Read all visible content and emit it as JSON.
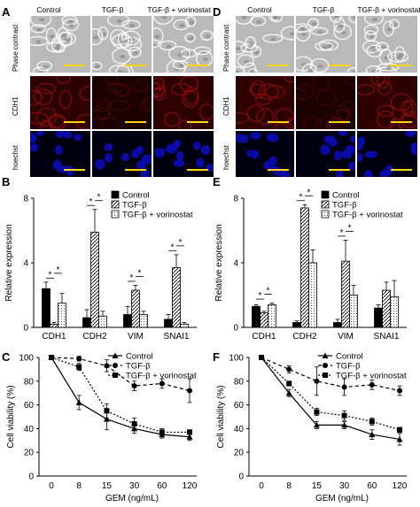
{
  "panels": {
    "A": "A",
    "B": "B",
    "C": "C",
    "D": "D",
    "E": "E",
    "F": "F"
  },
  "micro": {
    "columns": [
      "Control",
      "TGF-β",
      "TGF-β + vorinostat"
    ],
    "rows": [
      "Phase contrast",
      "CDH1",
      "hoechst"
    ]
  },
  "colors": {
    "phase": "#b9b9b9",
    "cdh1": "#6a0505",
    "hoechst": "#0a0aa6",
    "scale_bar": "#ffd400"
  },
  "chart_data": [
    {
      "panel": "B",
      "type": "bar",
      "categories": [
        "CDH1",
        "CDH2",
        "VIM",
        "SNAI1"
      ],
      "ylabel": "Relative expression",
      "ylim": [
        0,
        8
      ],
      "yticks": [
        0,
        4,
        8
      ],
      "legend_position": "top-right",
      "series": [
        {
          "name": "Control",
          "values": [
            2.4,
            0.6,
            0.8,
            0.5
          ],
          "errors": [
            0.4,
            0.5,
            0.5,
            0.3
          ]
        },
        {
          "name": "TGF-β",
          "values": [
            0.2,
            5.9,
            2.3,
            3.7
          ],
          "errors": [
            0.1,
            1.4,
            0.3,
            0.8
          ]
        },
        {
          "name": "TGF-β + vorinostat",
          "values": [
            1.5,
            0.7,
            0.8,
            0.2
          ],
          "errors": [
            0.6,
            0.3,
            0.2,
            0.1
          ]
        }
      ],
      "significance": [
        "*",
        "*",
        "*",
        "*",
        "*",
        "*",
        "*",
        "*"
      ]
    },
    {
      "panel": "E",
      "type": "bar",
      "categories": [
        "CDH1",
        "CDH2",
        "VIM",
        "SNAI1"
      ],
      "ylabel": "Relative expression",
      "ylim": [
        0,
        8
      ],
      "yticks": [
        0,
        4,
        8
      ],
      "legend_position": "top-right",
      "series": [
        {
          "name": "Control",
          "values": [
            1.3,
            0.3,
            0.3,
            1.2
          ],
          "errors": [
            0.1,
            0.1,
            0.2,
            0.2
          ]
        },
        {
          "name": "TGF-β",
          "values": [
            0.9,
            7.4,
            4.1,
            2.3
          ],
          "errors": [
            0.1,
            0.2,
            1.3,
            0.5
          ]
        },
        {
          "name": "TGF-β + vorinostat",
          "values": [
            1.4,
            4.0,
            2.0,
            1.9
          ],
          "errors": [
            0.1,
            0.8,
            0.6,
            1.0
          ]
        }
      ],
      "significance": [
        "*",
        "*",
        "*",
        "*",
        "*",
        "*"
      ]
    },
    {
      "panel": "C",
      "type": "line",
      "x": [
        "0",
        "8",
        "15",
        "30",
        "60",
        "120"
      ],
      "xlabel": "GEM (ng/mL)",
      "ylabel": "Cell viability (%)",
      "ylim": [
        0,
        100
      ],
      "yticks": [
        0,
        20,
        40,
        60,
        80,
        100
      ],
      "legend_position": "top-right",
      "series": [
        {
          "name": "Control",
          "marker": "triangle",
          "values": [
            100,
            62,
            48,
            40,
            35,
            33
          ],
          "errors": [
            0,
            6,
            9,
            4,
            3,
            3
          ]
        },
        {
          "name": "TGF-β",
          "marker": "circle",
          "values": [
            100,
            99,
            93,
            76,
            78,
            72
          ],
          "errors": [
            0,
            2,
            5,
            4,
            4,
            10
          ]
        },
        {
          "name": "TGF-β + vorinostat",
          "marker": "square",
          "values": [
            100,
            92,
            55,
            44,
            37,
            37
          ],
          "errors": [
            0,
            3,
            6,
            5,
            3,
            2
          ]
        }
      ]
    },
    {
      "panel": "F",
      "type": "line",
      "x": [
        "0",
        "8",
        "15",
        "30",
        "60",
        "120"
      ],
      "xlabel": "GEM (ng/mL)",
      "ylabel": "Cell viability (%)",
      "ylim": [
        0,
        100
      ],
      "yticks": [
        0,
        20,
        40,
        60,
        80,
        100
      ],
      "legend_position": "top-right",
      "series": [
        {
          "name": "Control",
          "marker": "triangle",
          "values": [
            100,
            70,
            43,
            43,
            35,
            31
          ],
          "errors": [
            0,
            3,
            3,
            3,
            4,
            5
          ]
        },
        {
          "name": "TGF-β",
          "marker": "circle",
          "values": [
            100,
            90,
            80,
            75,
            77,
            72
          ],
          "errors": [
            0,
            3,
            12,
            7,
            4,
            4
          ]
        },
        {
          "name": "TGF-β + vorinostat",
          "marker": "square",
          "values": [
            100,
            78,
            54,
            51,
            46,
            39
          ],
          "errors": [
            0,
            2,
            3,
            4,
            3,
            2
          ]
        }
      ]
    }
  ]
}
